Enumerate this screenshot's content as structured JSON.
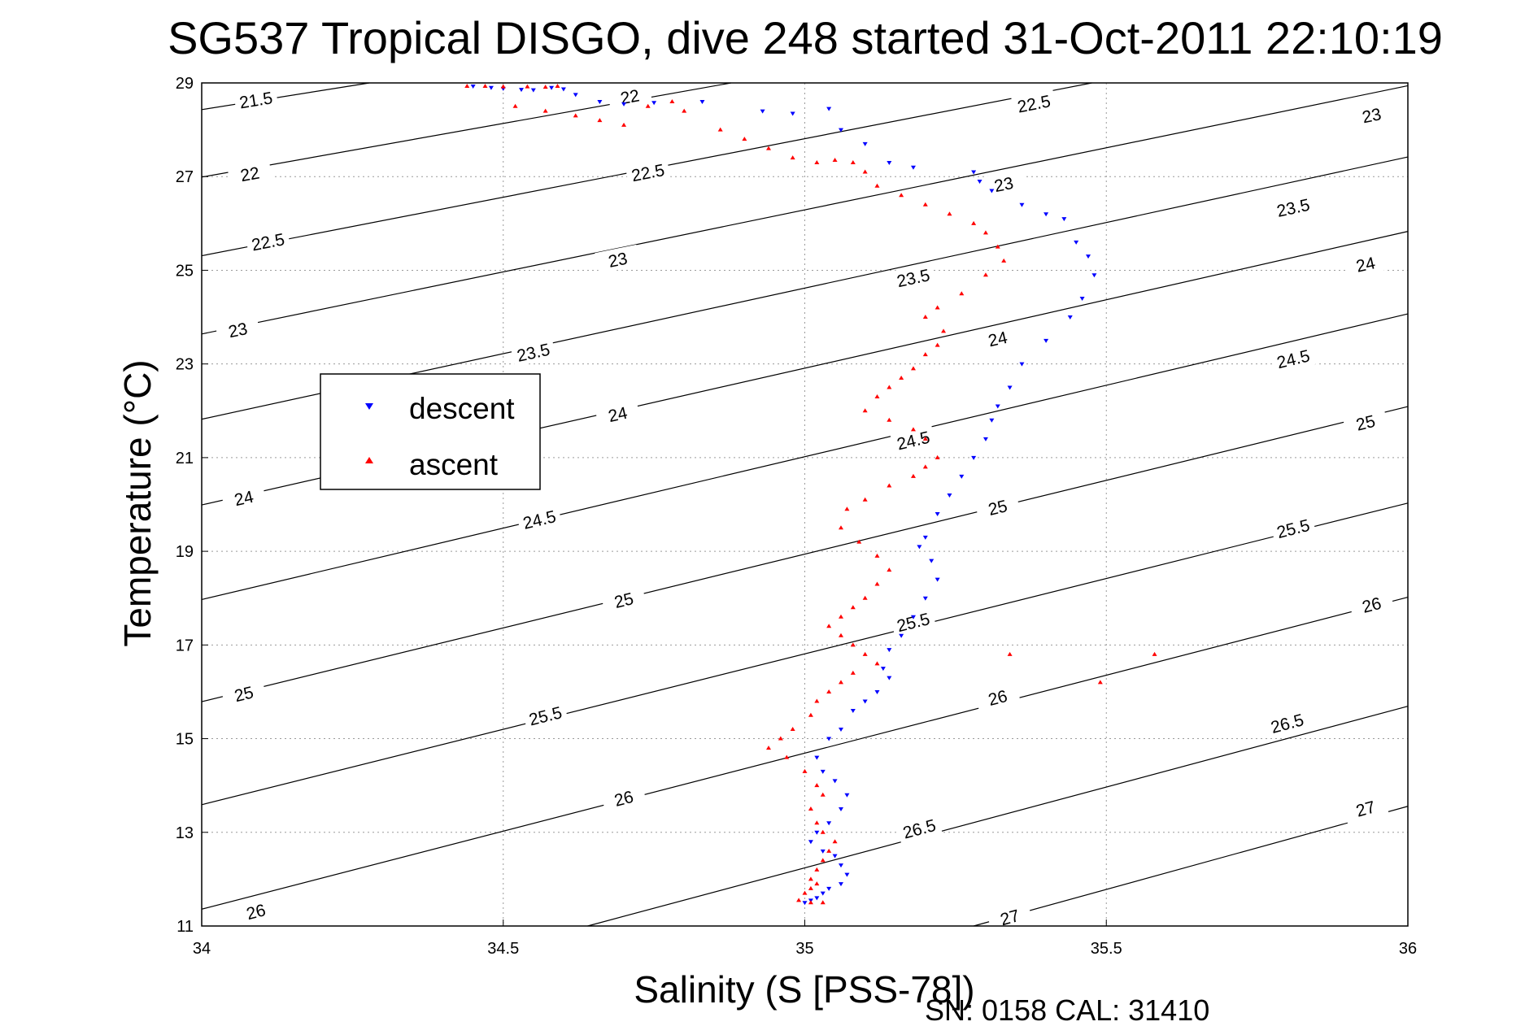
{
  "chart_data": {
    "type": "scatter",
    "title": "SG537 Tropical DISGO, dive 248 started 31-Oct-2011 22:10:19",
    "xlabel": "Salinity (S [PSS-78])",
    "ylabel": "Temperature (°C)",
    "footer": "SN: 0158  CAL: 31410",
    "xlim": [
      34,
      36
    ],
    "ylim": [
      11,
      29
    ],
    "xticks": [
      "34",
      "34.5",
      "35",
      "35.5",
      "36"
    ],
    "yticks": [
      "11",
      "13",
      "15",
      "17",
      "19",
      "21",
      "23",
      "25",
      "27",
      "29"
    ],
    "grid": true,
    "legend": {
      "placement": "left",
      "entries": [
        {
          "name": "descent",
          "marker": "triangle-down",
          "color": "#0000ff"
        },
        {
          "name": "ascent",
          "marker": "triangle-up",
          "color": "#ff0000"
        }
      ]
    },
    "contours": [
      {
        "level": "21.5",
        "s_left": 34.0,
        "t_left": 28.43,
        "slope": 2.05,
        "labels": [
          {
            "text": "21.5",
            "s": 34.09,
            "t": 28.63
          }
        ]
      },
      {
        "level": "22",
        "s_left": 34.0,
        "t_left": 26.99,
        "slope": 2.29,
        "labels": [
          {
            "text": "22",
            "s": 34.08,
            "t": 27.05
          },
          {
            "text": "22",
            "s": 34.71,
            "t": 28.7
          }
        ]
      },
      {
        "level": "22.5",
        "s_left": 34.0,
        "t_left": 25.31,
        "slope": 2.5,
        "labels": [
          {
            "text": "22.5",
            "s": 34.11,
            "t": 25.6
          },
          {
            "text": "22.5",
            "s": 34.74,
            "t": 27.08
          },
          {
            "text": "22.5",
            "s": 35.38,
            "t": 28.55
          }
        ]
      },
      {
        "level": "23",
        "s_left": 34.0,
        "t_left": 23.64,
        "slope": 2.65,
        "labels": [
          {
            "text": "23",
            "s": 34.06,
            "t": 23.72
          },
          {
            "text": "23",
            "s": 34.69,
            "t": 25.22
          },
          {
            "text": "23",
            "s": 35.33,
            "t": 26.83
          },
          {
            "text": "23",
            "s": 35.94,
            "t": 28.3
          }
        ]
      },
      {
        "level": "23.5",
        "s_left": 34.0,
        "t_left": 21.82,
        "slope": 2.8,
        "labels": [
          {
            "text": "23.5",
            "s": 34.55,
            "t": 23.24
          },
          {
            "text": "23.5",
            "s": 35.18,
            "t": 24.83
          },
          {
            "text": "23.5",
            "s": 35.81,
            "t": 26.33
          }
        ]
      },
      {
        "level": "24",
        "s_left": 34.0,
        "t_left": 19.99,
        "slope": 2.92,
        "labels": [
          {
            "text": "24",
            "s": 34.07,
            "t": 20.13
          },
          {
            "text": "24",
            "s": 34.69,
            "t": 21.92
          },
          {
            "text": "24",
            "s": 35.32,
            "t": 23.53
          },
          {
            "text": "24",
            "s": 35.93,
            "t": 25.12
          }
        ]
      },
      {
        "level": "24.5",
        "s_left": 34.0,
        "t_left": 17.97,
        "slope": 3.05,
        "labels": [
          {
            "text": "24.5",
            "s": 34.56,
            "t": 19.67
          },
          {
            "text": "24.5",
            "s": 35.18,
            "t": 21.36
          },
          {
            "text": "24.5",
            "s": 35.81,
            "t": 23.1
          }
        ]
      },
      {
        "level": "25",
        "s_left": 34.0,
        "t_left": 15.79,
        "slope": 3.15,
        "labels": [
          {
            "text": "25",
            "s": 34.07,
            "t": 15.95
          },
          {
            "text": "25",
            "s": 34.7,
            "t": 17.95
          },
          {
            "text": "25",
            "s": 35.32,
            "t": 19.93
          },
          {
            "text": "25",
            "s": 35.93,
            "t": 21.74
          }
        ]
      },
      {
        "level": "25.5",
        "s_left": 34.0,
        "t_left": 13.59,
        "slope": 3.22,
        "labels": [
          {
            "text": "25.5",
            "s": 34.57,
            "t": 15.48
          },
          {
            "text": "25.5",
            "s": 35.18,
            "t": 17.48
          },
          {
            "text": "25.5",
            "s": 35.81,
            "t": 19.48
          }
        ]
      },
      {
        "level": "26",
        "s_left": 34.0,
        "t_left": 11.36,
        "slope": 3.33,
        "labels": [
          {
            "text": "26",
            "s": 34.09,
            "t": 11.3
          },
          {
            "text": "26",
            "s": 34.7,
            "t": 13.72
          },
          {
            "text": "26",
            "s": 35.32,
            "t": 15.87
          },
          {
            "text": "26",
            "s": 35.94,
            "t": 17.85
          }
        ]
      },
      {
        "level": "26.5",
        "s_left": 34.64,
        "t_left": 11.0,
        "slope": 3.45,
        "labels": [
          {
            "text": "26.5",
            "s": 35.19,
            "t": 13.07
          },
          {
            "text": "26.5",
            "s": 35.8,
            "t": 15.32
          }
        ]
      },
      {
        "level": "27",
        "s_left": 35.28,
        "t_left": 11.0,
        "slope": 3.55,
        "labels": [
          {
            "text": "27",
            "s": 35.34,
            "t": 11.18
          },
          {
            "text": "27",
            "s": 35.93,
            "t": 13.5
          }
        ]
      }
    ],
    "series": [
      {
        "name": "descent",
        "marker": "triangle-down",
        "color": "#0000ff",
        "s": [
          34.45,
          34.48,
          34.5,
          34.53,
          34.55,
          34.58,
          34.6,
          34.62,
          34.66,
          34.7,
          34.75,
          34.83,
          34.93,
          34.98,
          35.04,
          35.06,
          35.1,
          35.14,
          35.18,
          35.28,
          35.29,
          35.31,
          35.36,
          35.4,
          35.43,
          35.45,
          35.47,
          35.48,
          35.46,
          35.44,
          35.4,
          35.36,
          35.34,
          35.32,
          35.31,
          35.3,
          35.28,
          35.26,
          35.24,
          35.22,
          35.2,
          35.19,
          35.21,
          35.22,
          35.2,
          35.18,
          35.16,
          35.14,
          35.13,
          35.14,
          35.12,
          35.1,
          35.08,
          35.06,
          35.04,
          35.02,
          35.03,
          35.05,
          35.07,
          35.06,
          35.04,
          35.02,
          35.01,
          35.03,
          35.05,
          35.06,
          35.07,
          35.06,
          35.04,
          35.03,
          35.02,
          35.01,
          35.0
        ],
        "t": [
          28.93,
          28.9,
          28.88,
          28.86,
          28.85,
          28.9,
          28.87,
          28.75,
          28.6,
          28.55,
          28.58,
          28.6,
          28.4,
          28.35,
          28.45,
          28.0,
          27.7,
          27.3,
          27.2,
          27.1,
          26.9,
          26.7,
          26.4,
          26.2,
          26.1,
          25.6,
          25.3,
          24.9,
          24.4,
          24.0,
          23.5,
          23.0,
          22.5,
          22.1,
          21.8,
          21.4,
          21.0,
          20.6,
          20.2,
          19.8,
          19.3,
          19.1,
          18.8,
          18.4,
          18.0,
          17.6,
          17.2,
          16.9,
          16.5,
          16.3,
          16.0,
          15.8,
          15.6,
          15.2,
          15.0,
          14.6,
          14.3,
          14.1,
          13.8,
          13.5,
          13.2,
          13.0,
          12.8,
          12.6,
          12.5,
          12.3,
          12.1,
          11.9,
          11.8,
          11.7,
          11.6,
          11.55,
          11.5
        ]
      },
      {
        "name": "ascent",
        "marker": "triangle-up",
        "color": "#ff0000",
        "s": [
          34.44,
          34.47,
          34.5,
          34.54,
          34.57,
          34.59,
          34.52,
          34.57,
          34.62,
          34.66,
          34.7,
          34.74,
          34.78,
          34.8,
          34.86,
          34.9,
          34.94,
          34.98,
          35.02,
          35.05,
          35.08,
          35.1,
          35.12,
          35.16,
          35.2,
          35.24,
          35.28,
          35.3,
          35.32,
          35.33,
          35.3,
          35.26,
          35.22,
          35.2,
          35.23,
          35.22,
          35.2,
          35.18,
          35.16,
          35.14,
          35.12,
          35.1,
          35.14,
          35.18,
          35.2,
          35.22,
          35.2,
          35.18,
          35.14,
          35.1,
          35.07,
          35.06,
          35.09,
          35.12,
          35.14,
          35.12,
          35.1,
          35.08,
          35.06,
          35.04,
          35.06,
          35.08,
          35.1,
          35.12,
          35.08,
          35.06,
          35.04,
          35.02,
          35.01,
          34.98,
          34.96,
          34.94,
          34.97,
          35.0,
          35.02,
          35.03,
          35.01,
          35.02,
          35.03,
          35.05,
          35.04,
          35.03,
          35.02,
          35.01,
          35.02,
          35.01,
          35.0,
          34.99,
          35.01,
          35.03,
          35.58,
          35.49,
          35.34
        ],
        "t": [
          28.93,
          28.93,
          28.92,
          28.92,
          28.91,
          28.93,
          28.5,
          28.4,
          28.3,
          28.2,
          28.1,
          28.5,
          28.6,
          28.4,
          28.0,
          27.8,
          27.6,
          27.4,
          27.3,
          27.35,
          27.3,
          27.1,
          26.8,
          26.6,
          26.4,
          26.2,
          26.0,
          25.8,
          25.5,
          25.2,
          24.9,
          24.5,
          24.2,
          24.0,
          23.7,
          23.4,
          23.2,
          22.9,
          22.7,
          22.5,
          22.3,
          22.0,
          21.8,
          21.6,
          21.4,
          21.0,
          20.8,
          20.6,
          20.4,
          20.1,
          19.9,
          19.5,
          19.2,
          18.9,
          18.6,
          18.3,
          18.0,
          17.8,
          17.6,
          17.4,
          17.2,
          17.0,
          16.8,
          16.6,
          16.4,
          16.2,
          16.0,
          15.8,
          15.5,
          15.2,
          15.0,
          14.8,
          14.6,
          14.3,
          14.0,
          13.8,
          13.5,
          13.2,
          13.0,
          12.8,
          12.6,
          12.4,
          12.2,
          12.0,
          11.9,
          11.8,
          11.7,
          11.55,
          11.5,
          11.5,
          16.8,
          16.2,
          16.8
        ]
      }
    ]
  }
}
